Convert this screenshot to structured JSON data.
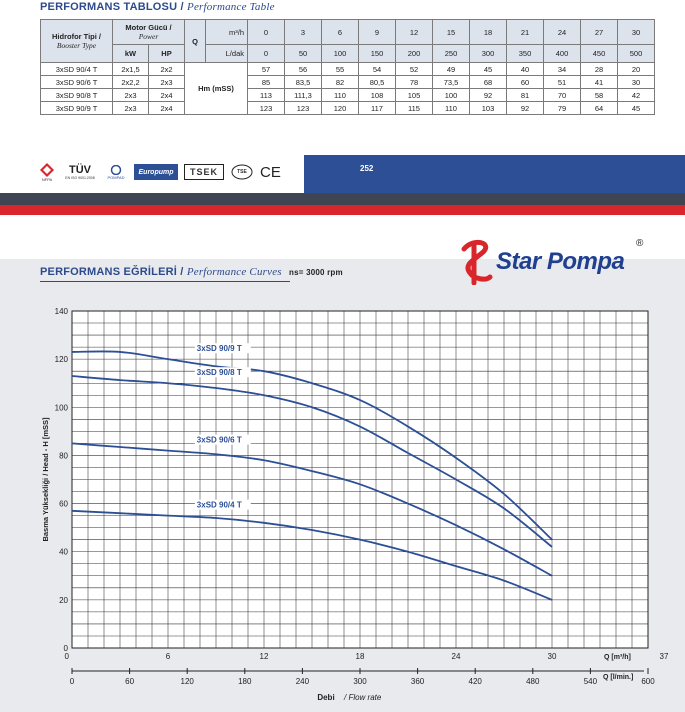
{
  "table_section": {
    "title": "PERFORMANS TABLOSU",
    "sep": "/",
    "subtitle": "Performance Table",
    "col_type_tr": "Hidrofor Tipi /",
    "col_type_en": "Booster Type",
    "col_power_tr": "Motor Gücü /",
    "col_power_en": "Power",
    "kw": "kW",
    "hp": "HP",
    "q": "Q",
    "unit_m3h": "m³/h",
    "unit_ldak": "L/dak",
    "hm": "Hm (mSS)",
    "q_m3h": [
      "0",
      "3",
      "6",
      "9",
      "12",
      "15",
      "18",
      "21",
      "24",
      "27",
      "30"
    ],
    "q_ldak": [
      "0",
      "50",
      "100",
      "150",
      "200",
      "250",
      "300",
      "350",
      "400",
      "450",
      "500"
    ],
    "rows": [
      {
        "model": "3xSD 90/4 T",
        "kw": "2x1,5",
        "hp": "2x2",
        "values": [
          "57",
          "56",
          "55",
          "54",
          "52",
          "49",
          "45",
          "40",
          "34",
          "28",
          "20"
        ]
      },
      {
        "model": "3xSD 90/6 T",
        "kw": "2x2,2",
        "hp": "2x3",
        "values": [
          "85",
          "83,5",
          "82",
          "80,5",
          "78",
          "73,5",
          "68",
          "60",
          "51",
          "41",
          "30"
        ]
      },
      {
        "model": "3xSD 90/8 T",
        "kw": "2x3",
        "hp": "2x4",
        "values": [
          "113",
          "111,3",
          "110",
          "108",
          "105",
          "100",
          "92",
          "81",
          "70",
          "58",
          "42"
        ]
      },
      {
        "model": "3xSD 90/9 T",
        "kw": "2x3",
        "hp": "2x4",
        "values": [
          "123",
          "123",
          "120",
          "117",
          "115",
          "110",
          "103",
          "92",
          "79",
          "64",
          "45"
        ]
      }
    ]
  },
  "certs": {
    "tuv": "TÜV",
    "tuv_sub": "EN ISO 9001:2008",
    "nfpa": "NFPA",
    "pompad": "POMPAD",
    "europump": "Europump",
    "tsek": "TSEK",
    "tse": "TSE",
    "ce": "CE"
  },
  "page_number": "252",
  "curves_section": {
    "title": "PERFORMANS EĞRİLERİ",
    "sep": "/",
    "subtitle": "Performance Curves",
    "ns": "ns= 3000 rpm"
  },
  "brand": {
    "name": "Star Pompa",
    "registered": "®"
  },
  "chart_data": {
    "type": "line",
    "ylabel": "Basma Yüksekliği / Head - H [mSS]",
    "ylim": [
      0,
      140
    ],
    "yticks": [
      "0",
      "20",
      "40",
      "60",
      "80",
      "100",
      "120",
      "140"
    ],
    "x_m3h_label": "Q [m³/h]",
    "x_m3h_ticks": [
      "6",
      "12",
      "18",
      "24",
      "30",
      "37"
    ],
    "x_l_label": "Q [l/min.]",
    "x_l_ticks": [
      "0",
      "60",
      "120",
      "180",
      "240",
      "300",
      "360",
      "420",
      "480",
      "540",
      "600"
    ],
    "xlabel_tr": "Debi",
    "xlabel_en": "Flow rate",
    "xlim": [
      0,
      36
    ],
    "x": [
      0,
      3,
      6,
      9,
      12,
      15,
      18,
      21,
      24,
      27,
      30
    ],
    "grid": true,
    "series": [
      {
        "name": "3xSD 90/9 T",
        "values": [
          123,
          123,
          120,
          117,
          115,
          110,
          103,
          92,
          79,
          64,
          45
        ]
      },
      {
        "name": "3xSD 90/8 T",
        "values": [
          113,
          111.3,
          110,
          108,
          105,
          100,
          92,
          81,
          70,
          58,
          42
        ]
      },
      {
        "name": "3xSD 90/6 T",
        "values": [
          85,
          83.5,
          82,
          80.5,
          78,
          73.5,
          68,
          60,
          51,
          41,
          30
        ]
      },
      {
        "name": "3xSD 90/4 T",
        "values": [
          57,
          56,
          55,
          54,
          52,
          49,
          45,
          40,
          34,
          28,
          20
        ]
      }
    ]
  }
}
